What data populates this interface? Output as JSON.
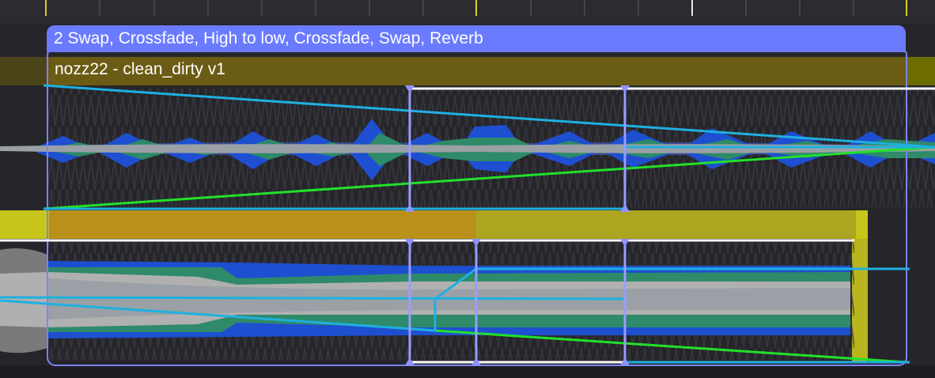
{
  "clip": {
    "title": "2 Swap, Crossfade, High to low, Crossfade, Swap, Reverb"
  },
  "tracks": [
    {
      "name": "nozz22 - clean_dirty v1"
    }
  ],
  "colors": {
    "header_accent": "#6b7bff",
    "track1_band": "#6a5c14",
    "track2_band": "#c8c51a",
    "waveform_blue": "#1e4fd0",
    "waveform_green": "#2e8a68",
    "waveform_gray": "#9aa0a6",
    "automation_cyan": "#1fb0e0",
    "automation_green": "#22e02a",
    "marker_violet": "#9a9cff"
  },
  "icons": [
    "marker-triangle-icon",
    "playhead-icon"
  ]
}
